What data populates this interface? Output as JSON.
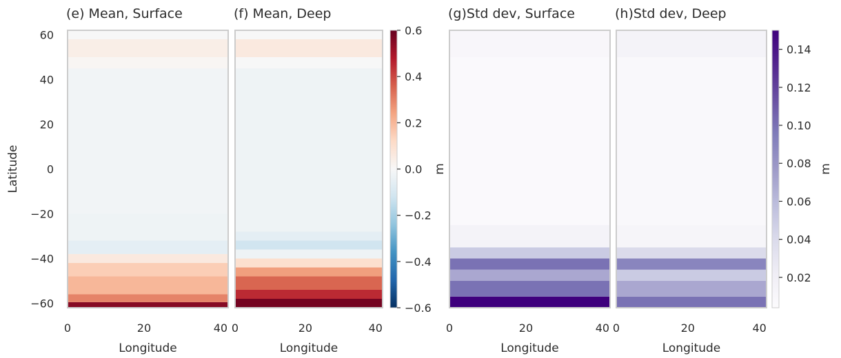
{
  "chart_data": [
    {
      "type": "heatmap",
      "title": "(e)  Mean, Surface",
      "xlabel": "Longitude",
      "ylabel": "Latitude",
      "xlim": [
        0,
        42
      ],
      "ylim": [
        -62,
        62
      ],
      "xticks": [
        "0",
        "20",
        "40"
      ],
      "yticks": [
        "60",
        "40",
        "20",
        "0",
        "−20",
        "−40",
        "−60"
      ],
      "colormap": "RdBu_r",
      "shared_colorbar": "mean",
      "bands": [
        {
          "lat": [
            -62,
            -59.5
          ],
          "value": 0.55
        },
        {
          "lat": [
            -59.5,
            -56
          ],
          "value": 0.3
        },
        {
          "lat": [
            -56,
            -48
          ],
          "value": 0.2
        },
        {
          "lat": [
            -48,
            -42
          ],
          "value": 0.15
        },
        {
          "lat": [
            -42,
            -38
          ],
          "value": 0.06
        },
        {
          "lat": [
            -38,
            -32
          ],
          "value": -0.06
        },
        {
          "lat": [
            -32,
            -20
          ],
          "value": -0.03
        },
        {
          "lat": [
            -20,
            45
          ],
          "value": -0.02
        },
        {
          "lat": [
            45,
            50
          ],
          "value": 0.01
        },
        {
          "lat": [
            50,
            58
          ],
          "value": 0.04
        },
        {
          "lat": [
            58,
            62
          ],
          "value": 0.0
        }
      ]
    },
    {
      "type": "heatmap",
      "title": "(f)   Mean, Deep",
      "xlabel": "Longitude",
      "xlim": [
        0,
        42
      ],
      "ylim": [
        -62,
        62
      ],
      "xticks": [
        "0",
        "20",
        "40"
      ],
      "colormap": "RdBu_r",
      "shared_colorbar": "mean",
      "bands": [
        {
          "lat": [
            -62,
            -58
          ],
          "value": 0.58
        },
        {
          "lat": [
            -58,
            -54
          ],
          "value": 0.45
        },
        {
          "lat": [
            -54,
            -48
          ],
          "value": 0.35
        },
        {
          "lat": [
            -48,
            -44
          ],
          "value": 0.25
        },
        {
          "lat": [
            -44,
            -40
          ],
          "value": 0.1
        },
        {
          "lat": [
            -40,
            -36
          ],
          "value": -0.03
        },
        {
          "lat": [
            -36,
            -32
          ],
          "value": -0.12
        },
        {
          "lat": [
            -32,
            -28
          ],
          "value": -0.06
        },
        {
          "lat": [
            -28,
            45
          ],
          "value": -0.03
        },
        {
          "lat": [
            45,
            50
          ],
          "value": 0.0
        },
        {
          "lat": [
            50,
            58
          ],
          "value": 0.06
        },
        {
          "lat": [
            58,
            62
          ],
          "value": 0.0
        }
      ]
    },
    {
      "type": "heatmap",
      "title": "(g)Std dev, Surface",
      "xlabel": "Longitude",
      "xlim": [
        0,
        42
      ],
      "ylim": [
        -62,
        62
      ],
      "xticks": [
        "0",
        "20",
        "40"
      ],
      "colormap": "Purples",
      "shared_colorbar": "std",
      "bands": [
        {
          "lat": [
            -62,
            -57
          ],
          "value": 0.15
        },
        {
          "lat": [
            -57,
            -50
          ],
          "value": 0.1
        },
        {
          "lat": [
            -50,
            -45
          ],
          "value": 0.07
        },
        {
          "lat": [
            -45,
            -40
          ],
          "value": 0.1
        },
        {
          "lat": [
            -40,
            -35
          ],
          "value": 0.05
        },
        {
          "lat": [
            -35,
            -25
          ],
          "value": 0.015
        },
        {
          "lat": [
            -25,
            50
          ],
          "value": 0.007
        },
        {
          "lat": [
            50,
            62
          ],
          "value": 0.01
        }
      ]
    },
    {
      "type": "heatmap",
      "title": "(h)Std dev, Deep",
      "xlabel": "Longitude",
      "xlim": [
        0,
        42
      ],
      "ylim": [
        -62,
        62
      ],
      "xticks": [
        "0",
        "20",
        "40"
      ],
      "colormap": "Purples",
      "shared_colorbar": "std",
      "bands": [
        {
          "lat": [
            -62,
            -57
          ],
          "value": 0.1
        },
        {
          "lat": [
            -57,
            -50
          ],
          "value": 0.07
        },
        {
          "lat": [
            -50,
            -45
          ],
          "value": 0.05
        },
        {
          "lat": [
            -45,
            -40
          ],
          "value": 0.09
        },
        {
          "lat": [
            -40,
            -35
          ],
          "value": 0.04
        },
        {
          "lat": [
            -35,
            -25
          ],
          "value": 0.012
        },
        {
          "lat": [
            -25,
            50
          ],
          "value": 0.008
        },
        {
          "lat": [
            50,
            62
          ],
          "value": 0.015
        }
      ]
    }
  ],
  "colorbars": {
    "mean": {
      "label": "m",
      "range": [
        -0.6,
        0.6
      ],
      "ticks": [
        -0.6,
        -0.4,
        -0.2,
        0.0,
        0.2,
        0.4,
        0.6
      ],
      "tick_labels": [
        "−0.6",
        "−0.4",
        "−0.2",
        "0.0",
        "0.2",
        "0.4",
        "0.6"
      ],
      "stops": [
        "#053061",
        "#2166ac",
        "#4393c3",
        "#92c5de",
        "#d1e5f0",
        "#f7f7f7",
        "#fddbc7",
        "#f4a582",
        "#d6604d",
        "#b2182b",
        "#67001f"
      ]
    },
    "std": {
      "label": "m",
      "range": [
        0.004,
        0.15
      ],
      "ticks": [
        0.02,
        0.04,
        0.06,
        0.08,
        0.1,
        0.12,
        0.14
      ],
      "tick_labels": [
        "0.02",
        "0.04",
        "0.06",
        "0.08",
        "0.10",
        "0.12",
        "0.14"
      ],
      "stops": [
        "#fcfbfd",
        "#efedf5",
        "#dadaeb",
        "#bcbddc",
        "#9e9ac8",
        "#807dba",
        "#6a51a3",
        "#54278f",
        "#3f007d"
      ]
    }
  }
}
